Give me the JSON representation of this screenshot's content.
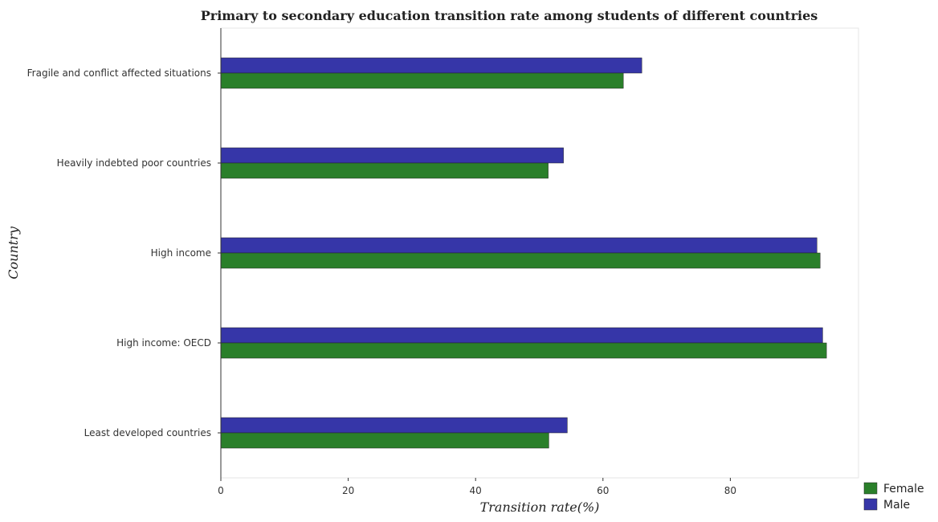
{
  "chart_data": {
    "type": "bar",
    "orientation": "horizontal",
    "title": "Primary to secondary education transition rate among students of different countries",
    "xlabel": "Transition rate(%)",
    "ylabel": "Country",
    "xlim": [
      0,
      100
    ],
    "xticks": [
      0,
      20,
      40,
      60,
      80
    ],
    "categories": [
      "Fragile and conflict affected situations",
      "Heavily indebted poor countries",
      "High income",
      "High income: OECD",
      "Least developed countries"
    ],
    "series": [
      {
        "name": "Female",
        "color": "#2a7f2a",
        "values": [
          63.2,
          51.4,
          94.1,
          95.1,
          51.5
        ]
      },
      {
        "name": "Male",
        "color": "#3636a8",
        "values": [
          66.1,
          53.8,
          93.6,
          94.5,
          54.4
        ]
      }
    ],
    "legend_position": "bottom-right",
    "grid": false
  }
}
